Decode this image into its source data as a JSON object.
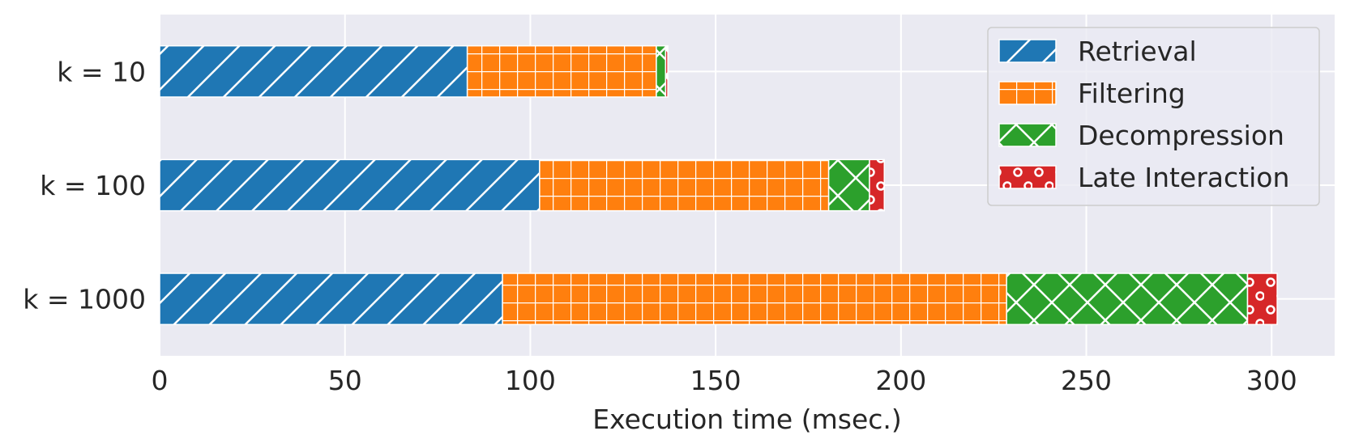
{
  "chart_data": {
    "type": "bar",
    "orientation": "horizontal",
    "stacked": true,
    "title": "",
    "xlabel": "Execution time (msec.)",
    "ylabel": "",
    "xlim": [
      0,
      317
    ],
    "xticks": [
      0,
      50,
      100,
      150,
      200,
      250,
      300
    ],
    "grid": true,
    "legend_position": "top-right",
    "categories": [
      "k = 10",
      "k = 100",
      "k = 1000"
    ],
    "series": [
      {
        "name": "Retrieval",
        "color": "#1f77b4",
        "hatch": "diagonal",
        "values": [
          83,
          102.5,
          92.5
        ]
      },
      {
        "name": "Filtering",
        "color": "#ff7f0e",
        "hatch": "grid",
        "values": [
          51,
          78,
          136
        ]
      },
      {
        "name": "Decompression",
        "color": "#2ca02c",
        "hatch": "cross",
        "values": [
          2.5,
          11,
          65
        ]
      },
      {
        "name": "Late Interaction",
        "color": "#d62728",
        "hatch": "circles",
        "values": [
          0.6,
          4,
          8
        ]
      }
    ]
  }
}
